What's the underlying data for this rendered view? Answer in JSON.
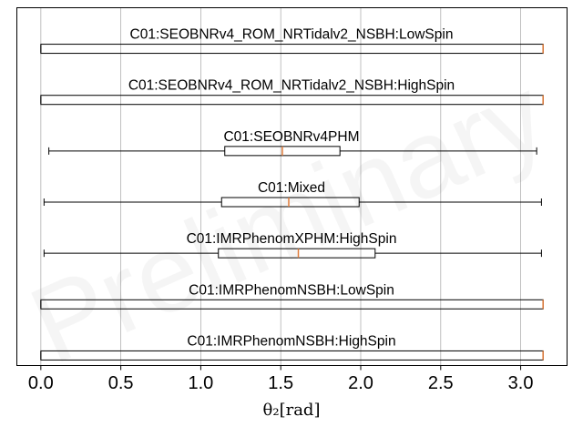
{
  "chart_data": {
    "type": "box",
    "xlabel": "θ₂[rad]",
    "xlim": [
      -0.15,
      3.29
    ],
    "xticks": [
      0.0,
      0.5,
      1.0,
      1.5,
      2.0,
      2.5,
      3.0
    ],
    "xtick_labels": [
      "0.0",
      "0.5",
      "1.0",
      "1.5",
      "2.0",
      "2.5",
      "3.0"
    ],
    "grid": "vertical",
    "watermark": "Preliminary",
    "median_color": "#e07b39",
    "box_color": "#000000",
    "series": [
      {
        "name": "C01:SEOBNRv4_ROM_NRTidalv2_NSBH:LowSpin",
        "whisker_low": 0.0,
        "q1": 0.0,
        "median": 3.14,
        "q3": 3.14,
        "whisker_high": 3.14
      },
      {
        "name": "C01:SEOBNRv4_ROM_NRTidalv2_NSBH:HighSpin",
        "whisker_low": 0.0,
        "q1": 0.0,
        "median": 3.14,
        "q3": 3.14,
        "whisker_high": 3.14
      },
      {
        "name": "C01:SEOBNRv4PHM",
        "whisker_low": 0.05,
        "q1": 1.15,
        "median": 1.51,
        "q3": 1.87,
        "whisker_high": 3.1
      },
      {
        "name": "C01:Mixed",
        "whisker_low": 0.02,
        "q1": 1.13,
        "median": 1.55,
        "q3": 1.99,
        "whisker_high": 3.13
      },
      {
        "name": "C01:IMRPhenomXPHM:HighSpin",
        "whisker_low": 0.02,
        "q1": 1.11,
        "median": 1.61,
        "q3": 2.09,
        "whisker_high": 3.13
      },
      {
        "name": "C01:IMRPhenomNSBH:LowSpin",
        "whisker_low": 0.0,
        "q1": 0.0,
        "median": 3.14,
        "q3": 3.14,
        "whisker_high": 3.14
      },
      {
        "name": "C01:IMRPhenomNSBH:HighSpin",
        "whisker_low": 0.0,
        "q1": 0.0,
        "median": 3.14,
        "q3": 3.14,
        "whisker_high": 3.14
      }
    ]
  }
}
